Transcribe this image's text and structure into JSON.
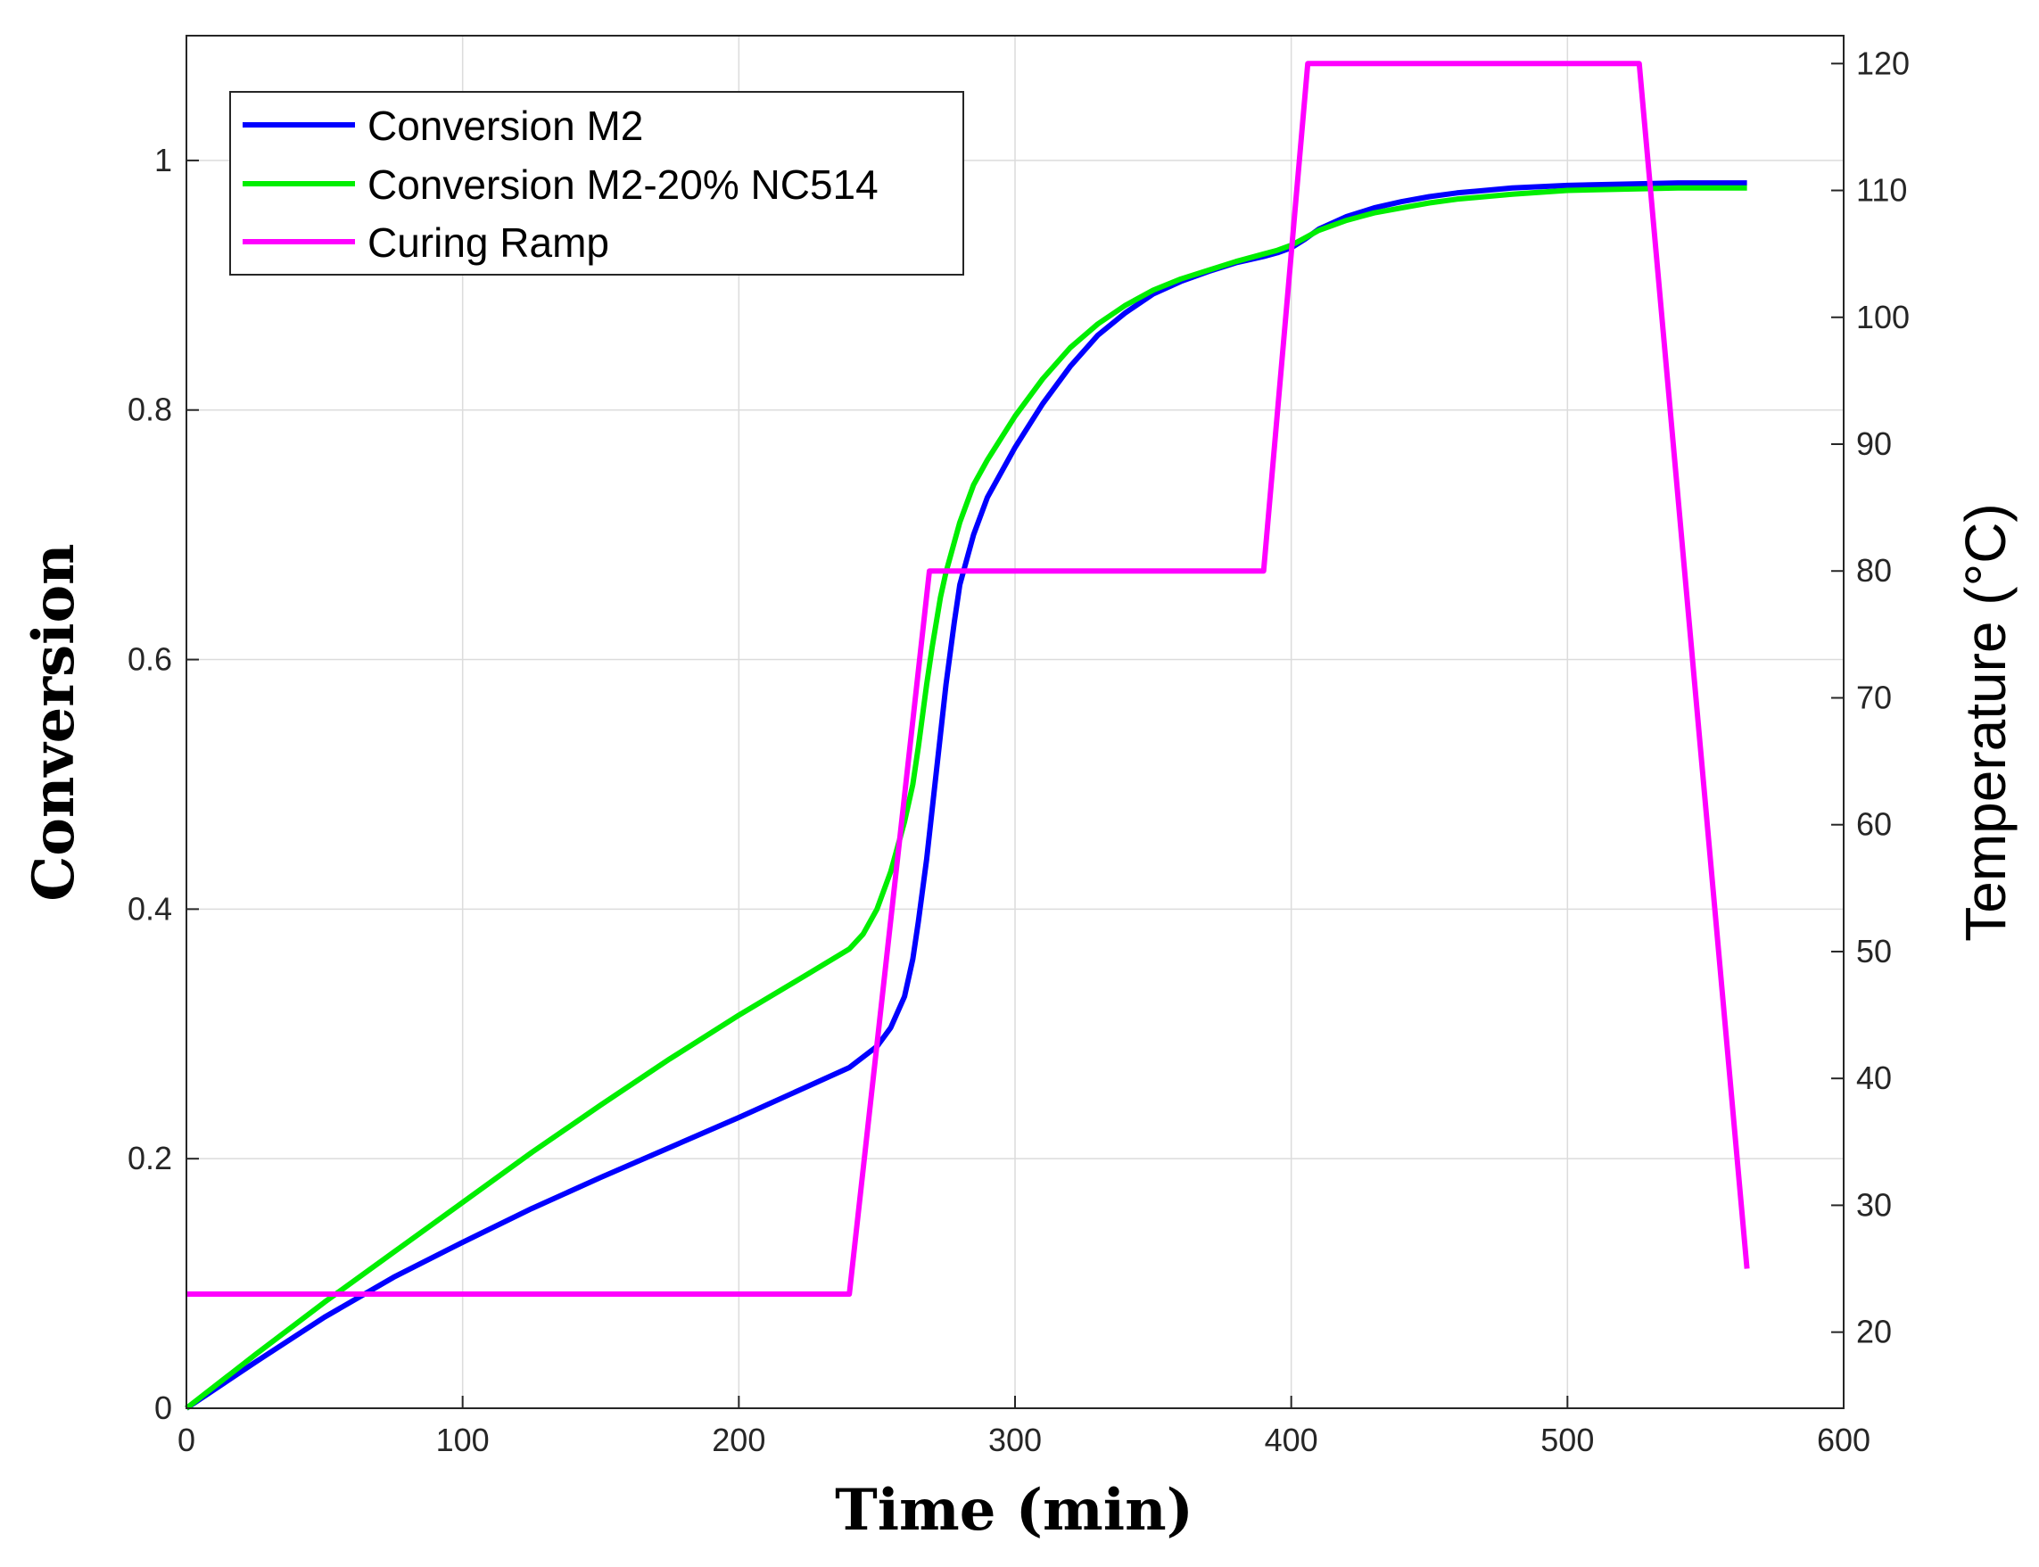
{
  "chart_data": {
    "type": "line",
    "xlabel": "Time (min)",
    "ylabel": "Conversion",
    "y2label": "Temperature (°C)",
    "xlim": [
      0,
      600
    ],
    "ylim": [
      0,
      1.1
    ],
    "y2lim": [
      14,
      122.2
    ],
    "x_ticks": [
      "0",
      "100",
      "200",
      "300",
      "400",
      "500",
      "600"
    ],
    "y_ticks": [
      "0",
      "0.2",
      "0.4",
      "0.6",
      "0.8",
      "1"
    ],
    "y2_ticks": [
      "20",
      "30",
      "40",
      "50",
      "60",
      "70",
      "80",
      "90",
      "100",
      "110",
      "120"
    ],
    "grid": true,
    "legend_position": "top-left",
    "series": [
      {
        "name": "Conversion M2",
        "axis": "left",
        "color": "#0000ff",
        "x": [
          0,
          25,
          50,
          75,
          100,
          125,
          150,
          175,
          200,
          225,
          240,
          250,
          255,
          260,
          263,
          265,
          268,
          270,
          273,
          275,
          278,
          280,
          285,
          290,
          300,
          310,
          320,
          330,
          340,
          350,
          360,
          370,
          380,
          390,
          395,
          400,
          405,
          410,
          420,
          430,
          440,
          450,
          460,
          480,
          500,
          520,
          540,
          565
        ],
        "y": [
          0,
          0.037,
          0.073,
          0.105,
          0.133,
          0.16,
          0.185,
          0.209,
          0.233,
          0.258,
          0.273,
          0.29,
          0.305,
          0.33,
          0.36,
          0.39,
          0.44,
          0.48,
          0.54,
          0.58,
          0.63,
          0.66,
          0.7,
          0.73,
          0.77,
          0.805,
          0.835,
          0.86,
          0.878,
          0.893,
          0.903,
          0.911,
          0.918,
          0.923,
          0.926,
          0.93,
          0.937,
          0.945,
          0.955,
          0.962,
          0.967,
          0.971,
          0.974,
          0.978,
          0.98,
          0.981,
          0.982,
          0.982
        ]
      },
      {
        "name": "Conversion M2-20% NC514",
        "axis": "left",
        "color": "#00ee00",
        "x": [
          0,
          25,
          50,
          75,
          100,
          125,
          150,
          175,
          200,
          225,
          240,
          245,
          250,
          255,
          260,
          263,
          265,
          268,
          270,
          273,
          275,
          280,
          285,
          290,
          300,
          310,
          320,
          330,
          340,
          350,
          360,
          370,
          380,
          390,
          395,
          400,
          405,
          410,
          420,
          430,
          440,
          450,
          460,
          480,
          500,
          520,
          540,
          565
        ],
        "y": [
          0,
          0.043,
          0.085,
          0.125,
          0.165,
          0.205,
          0.243,
          0.28,
          0.315,
          0.348,
          0.368,
          0.38,
          0.4,
          0.43,
          0.47,
          0.5,
          0.53,
          0.58,
          0.61,
          0.65,
          0.67,
          0.71,
          0.74,
          0.76,
          0.795,
          0.825,
          0.85,
          0.869,
          0.884,
          0.896,
          0.905,
          0.912,
          0.919,
          0.925,
          0.928,
          0.932,
          0.938,
          0.944,
          0.952,
          0.958,
          0.962,
          0.966,
          0.969,
          0.973,
          0.976,
          0.977,
          0.978,
          0.978
        ]
      },
      {
        "name": "Curing Ramp",
        "axis": "right",
        "color": "#ff00ff",
        "x": [
          0,
          240,
          269,
          390,
          406,
          526,
          565
        ],
        "y": [
          23,
          23,
          80,
          80,
          120,
          120,
          25
        ]
      }
    ]
  }
}
